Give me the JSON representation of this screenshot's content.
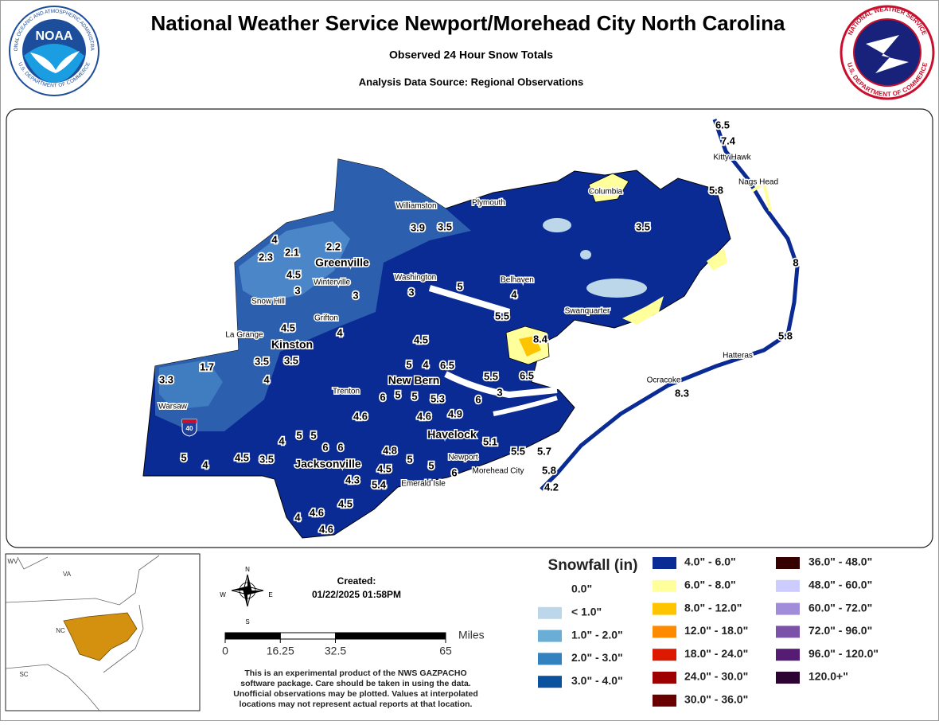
{
  "header": {
    "title": "National Weather Service Newport/Morehead City North Carolina",
    "subtitle": "Observed 24 Hour Snow Totals",
    "source": "Analysis Data Source: Regional Observations"
  },
  "logos": {
    "noaa": {
      "acronym": "NOAA",
      "ring_top": "NATIONAL OCEANIC AND ATMOSPHERIC ADMINISTRATION",
      "ring_bottom": "U.S. DEPARTMENT OF COMMERCE"
    },
    "nws": {
      "ring_top": "NATIONAL WEATHER SERVICE",
      "ring_bottom": "U.S. DEPARTMENT OF COMMERCE"
    }
  },
  "map": {
    "places": [
      "Kitty Hawk",
      "Nags Head",
      "Columbia",
      "Williamston",
      "Plymouth",
      "Greenville",
      "Winterville",
      "Washington",
      "Belhaven",
      "Snow Hill",
      "Grifton",
      "Swanquarter",
      "La Grange",
      "Kinston",
      "Hatteras",
      "New Bern",
      "Ocracoke",
      "Trenton",
      "Warsaw",
      "Havelock",
      "Newport",
      "Jacksonville",
      "Morehead City",
      "Emerald Isle"
    ],
    "interstate": "40",
    "observations": [
      6.5,
      7.4,
      5.8,
      3.5,
      8,
      5.8,
      8.3,
      4,
      2.3,
      2.1,
      2.2,
      4.5,
      3,
      3,
      3,
      5,
      4,
      5.5,
      8.4,
      3.9,
      3.5,
      4.5,
      4,
      4.5,
      3.5,
      3.5,
      4,
      1.7,
      3.3,
      5,
      4,
      6.5,
      5.5,
      6.5,
      3,
      6,
      6,
      5,
      5,
      5.3,
      4.6,
      4.6,
      4.9,
      5.1,
      4,
      5,
      5,
      6,
      6,
      4.8,
      5,
      5,
      4.5,
      5,
      4,
      4.5,
      3.5,
      4.3,
      5.4,
      4.5,
      4.6,
      4,
      4.6,
      6,
      5.5,
      5.7,
      5.8,
      4.2
    ]
  },
  "inset": {
    "labels": [
      "WV",
      "VA",
      "NC",
      "SC"
    ]
  },
  "compass": {
    "n": "N",
    "e": "E",
    "s": "S",
    "w": "W"
  },
  "created": {
    "label": "Created:",
    "timestamp": "01/22/2025 01:58PM"
  },
  "scale_bar": {
    "unit": "Miles",
    "ticks": [
      0,
      16.25,
      32.5,
      65
    ]
  },
  "disclaimer": [
    "This is an experimental product of the NWS GAZPACHO",
    "software package. Care should be taken in using the data.",
    "Unofficial observations may be plotted. Values at interpolated",
    "locations may not represent actual reports at that location."
  ],
  "legend": {
    "title": "Snowfall (in)",
    "items": [
      {
        "label": "0.0\"",
        "color": "#ffffff"
      },
      {
        "label": "< 1.0\"",
        "color": "#bcd7ea"
      },
      {
        "label": "1.0\" - 2.0\"",
        "color": "#6aaed6"
      },
      {
        "label": "2.0\" - 3.0\"",
        "color": "#3282c0"
      },
      {
        "label": "3.0\" - 4.0\"",
        "color": "#0a529e"
      },
      {
        "label": "4.0\" - 6.0\"",
        "color": "#0a2a94"
      },
      {
        "label": "6.0\" - 8.0\"",
        "color": "#ffff9c"
      },
      {
        "label": "8.0\" - 12.0\"",
        "color": "#ffc400"
      },
      {
        "label": "12.0\" - 18.0\"",
        "color": "#ff8a00"
      },
      {
        "label": "18.0\" - 24.0\"",
        "color": "#dd1a00"
      },
      {
        "label": "24.0\" - 30.0\"",
        "color": "#9e0000"
      },
      {
        "label": "30.0\" - 36.0\"",
        "color": "#690000"
      },
      {
        "label": "36.0\" - 48.0\"",
        "color": "#350000"
      },
      {
        "label": "48.0\" - 60.0\"",
        "color": "#ccccff"
      },
      {
        "label": "60.0\" - 72.0\"",
        "color": "#a08cd8"
      },
      {
        "label": "72.0\" - 96.0\"",
        "color": "#7c52a8"
      },
      {
        "label": "96.0\" - 120.0\"",
        "color": "#561c74"
      },
      {
        "label": "120.0+\"",
        "color": "#2d0333"
      }
    ]
  }
}
